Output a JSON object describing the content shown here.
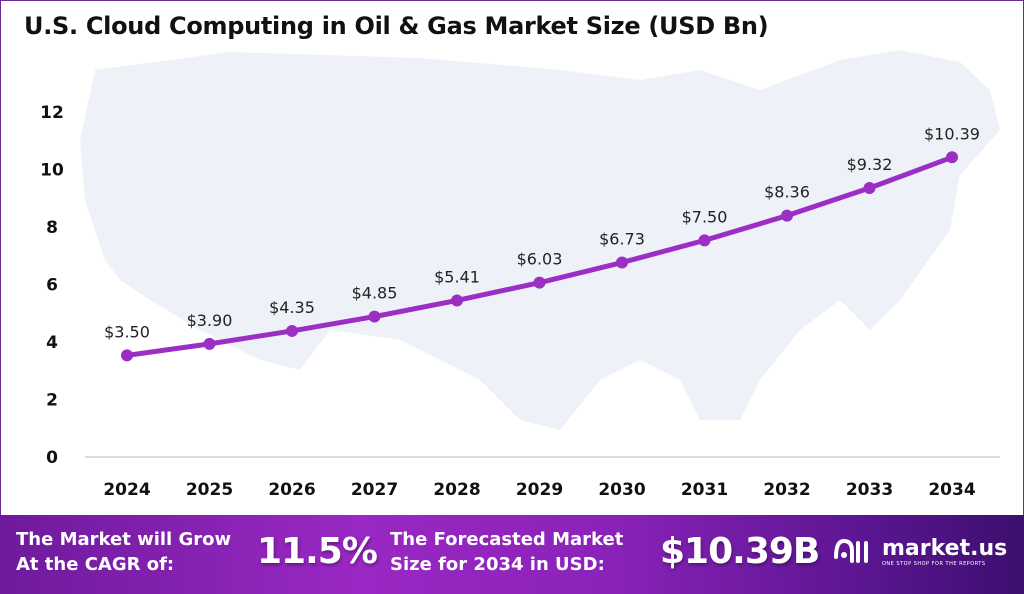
{
  "title": "U.S. Cloud Computing in Oil & Gas Market Size (USD Bn)",
  "chart_data": {
    "type": "line",
    "title": "U.S. Cloud Computing in Oil & Gas Market Size (USD Bn)",
    "categories": [
      "2024",
      "2025",
      "2026",
      "2027",
      "2028",
      "2029",
      "2030",
      "2031",
      "2032",
      "2033",
      "2034"
    ],
    "values": [
      3.5,
      3.9,
      4.35,
      4.85,
      5.41,
      6.03,
      6.73,
      7.5,
      8.36,
      9.32,
      10.39
    ],
    "data_labels": [
      "$3.50",
      "$3.90",
      "$4.35",
      "$4.85",
      "$5.41",
      "$6.03",
      "$6.73",
      "$7.50",
      "$8.36",
      "$9.32",
      "$10.39"
    ],
    "yticks": [
      "0",
      "2",
      "4",
      "6",
      "8",
      "10",
      "12"
    ],
    "ylim": [
      0,
      12
    ],
    "grid": false,
    "line_color": "#9b2fc4",
    "background_map": "USA map silhouette"
  },
  "banner": {
    "cagr_label_1": "The Market will Grow",
    "cagr_label_2": "At the CAGR of:",
    "cagr_value": "11.5%",
    "forecast_label_1": "The Forecasted Market",
    "forecast_label_2": "Size for 2034 in USD:",
    "forecast_value": "$10.39B",
    "logo_name": "market.us",
    "logo_tagline": "ONE STOP SHOP FOR THE REPORTS"
  }
}
